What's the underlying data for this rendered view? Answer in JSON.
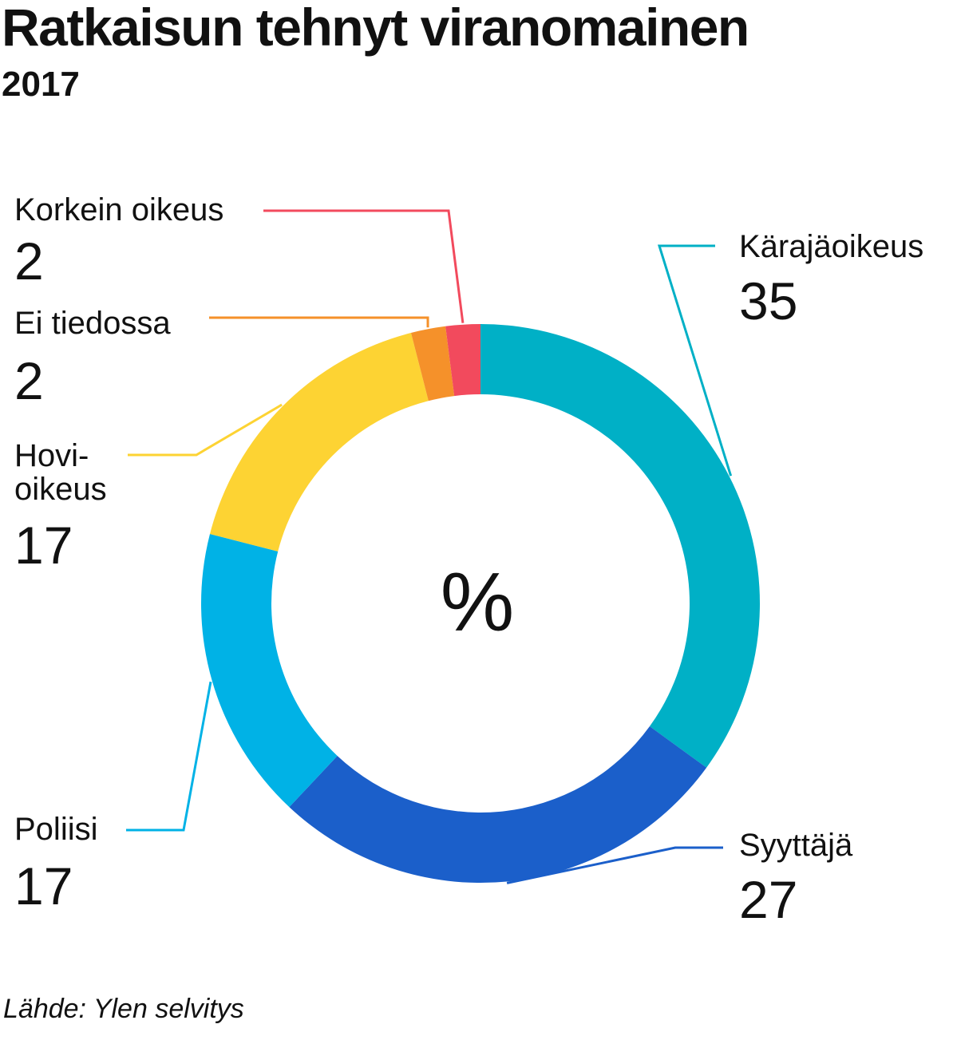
{
  "title": "Ratkaisun tehnyt viranomainen",
  "subtitle": "2017",
  "center_label": "%",
  "source": "Lähde: Ylen selvitys",
  "chart_data": {
    "type": "pie",
    "title": "Ratkaisun tehnyt viranomainen",
    "subtitle": "2017",
    "unit": "%",
    "slices": [
      {
        "label": "Kärajäoikeus",
        "value": 35,
        "color": "#00b0c6"
      },
      {
        "label": "Syyttäjä",
        "value": 27,
        "color": "#1b5fca"
      },
      {
        "label": "Poliisi",
        "value": 17,
        "color": "#00b2e6"
      },
      {
        "label": "Hovi-\noikeus",
        "value": 17,
        "color": "#fdd333"
      },
      {
        "label": "Ei tiedossa",
        "value": 2,
        "color": "#f5912a"
      },
      {
        "label": "Korkein oikeus",
        "value": 2,
        "color": "#f24a5d"
      }
    ]
  }
}
